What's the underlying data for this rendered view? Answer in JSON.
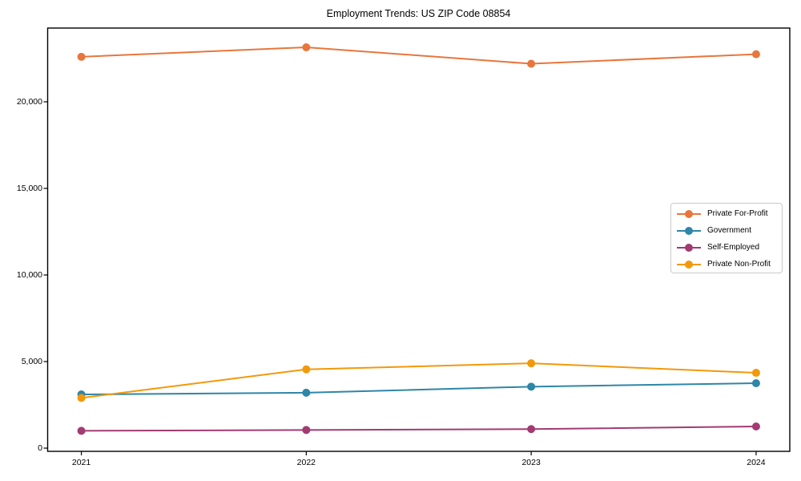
{
  "chart_data": {
    "type": "line",
    "title": "Employment Trends: US ZIP Code 08854",
    "categories": [
      "2021",
      "2022",
      "2023",
      "2024"
    ],
    "series": [
      {
        "name": "Private For-Profit",
        "color": "#E8763C",
        "values": [
          22600,
          23150,
          22200,
          22750
        ]
      },
      {
        "name": "Government",
        "color": "#2E86A8",
        "values": [
          3100,
          3200,
          3550,
          3750
        ]
      },
      {
        "name": "Self-Employed",
        "color": "#A23B72",
        "values": [
          1000,
          1050,
          1100,
          1250
        ]
      },
      {
        "name": "Private Non-Profit",
        "color": "#F2990A",
        "values": [
          2900,
          4550,
          4900,
          4350
        ]
      }
    ],
    "xlabel": "",
    "ylabel": "",
    "y_ticks": {
      "values": [
        0,
        5000,
        10000,
        15000,
        20000
      ],
      "labels": [
        "0",
        "5,000",
        "10,000",
        "15,000",
        "20,000"
      ]
    },
    "ylim": [
      -185,
      24260
    ],
    "x_margin_frac": 0.0454,
    "grid": false,
    "legend": {
      "position": "center-right",
      "border": true
    }
  },
  "style": {
    "axis_color": "#000000",
    "background": "#ffffff"
  }
}
